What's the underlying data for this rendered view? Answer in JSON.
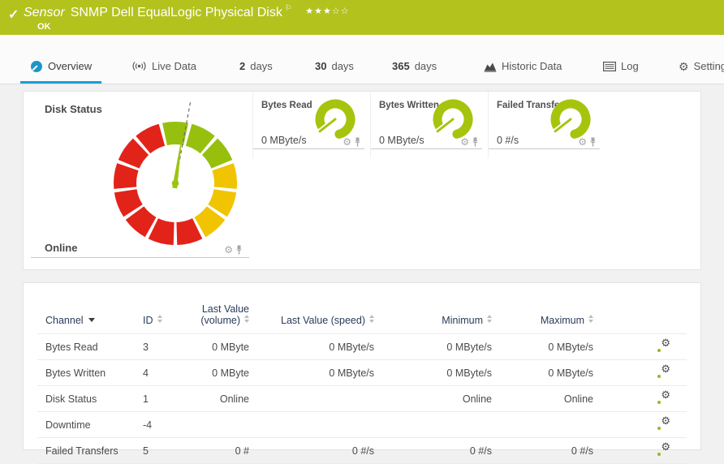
{
  "topbar": {
    "check_icon": "✓",
    "kind": "Sensor",
    "title": "SNMP Dell EqualLogic Physical Disk",
    "flag_icon": "⚐",
    "stars_filled": "★★★",
    "stars_empty": "☆☆",
    "status": "OK",
    "bg_color": "#b4c21e"
  },
  "tabs": [
    {
      "label": "Overview",
      "active": true
    },
    {
      "label": "Live Data",
      "active": false
    },
    {
      "value": "2",
      "unit": "days",
      "active": false
    },
    {
      "value": "30",
      "unit": "days",
      "active": false
    },
    {
      "value": "365",
      "unit": "days",
      "active": false
    },
    {
      "label": "Historic Data",
      "active": false
    },
    {
      "label": "Log",
      "active": false
    },
    {
      "label": "Settings",
      "active": false
    }
  ],
  "gauges": {
    "main": {
      "label": "Disk Status",
      "value": "Online",
      "needle_angle_deg": 8,
      "segment_colors": [
        "#97c00e",
        "#97c00e",
        "#97c00e",
        "#f0c400",
        "#f0c400",
        "#f0c400",
        "#e2231a",
        "#e2231a",
        "#e2231a",
        "#e2231a",
        "#e2231a",
        "#e2231a",
        "#e2231a"
      ]
    },
    "minis": [
      {
        "label": "Bytes Read",
        "value": "0 MByte/s"
      },
      {
        "label": "Bytes Written",
        "value": "0 MByte/s"
      },
      {
        "label": "Failed Transfers",
        "value": "0 #/s"
      }
    ]
  },
  "channel_table": {
    "columns": [
      {
        "label": "Channel"
      },
      {
        "label": "ID"
      },
      {
        "label": "Last Value",
        "label2": "(volume)"
      },
      {
        "label": "Last Value (speed)"
      },
      {
        "label": "Minimum"
      },
      {
        "label": "Maximum"
      }
    ],
    "rows": [
      {
        "channel": "Bytes Read",
        "id": "3",
        "volume": "0 MByte",
        "speed": "0 MByte/s",
        "min": "0 MByte/s",
        "max": "0 MByte/s"
      },
      {
        "channel": "Bytes Written",
        "id": "4",
        "volume": "0 MByte",
        "speed": "0 MByte/s",
        "min": "0 MByte/s",
        "max": "0 MByte/s"
      },
      {
        "channel": "Disk Status",
        "id": "1",
        "volume": "Online",
        "speed": "",
        "min": "Online",
        "max": "Online"
      },
      {
        "channel": "Downtime",
        "id": "-4",
        "volume": "",
        "speed": "",
        "min": "",
        "max": ""
      },
      {
        "channel": "Failed Transfers",
        "id": "5",
        "volume": "0 #",
        "speed": "0 #/s",
        "min": "0 #/s",
        "max": "0 #/s"
      }
    ]
  },
  "colors": {
    "status_ok_green": "#b4c21e",
    "active_tab_blue": "#1b9fd0",
    "gauge_green": "#97c00e",
    "gauge_yellow": "#f0c400",
    "gauge_red": "#e2231a",
    "mini_gauge_lime": "#a6c40e"
  }
}
